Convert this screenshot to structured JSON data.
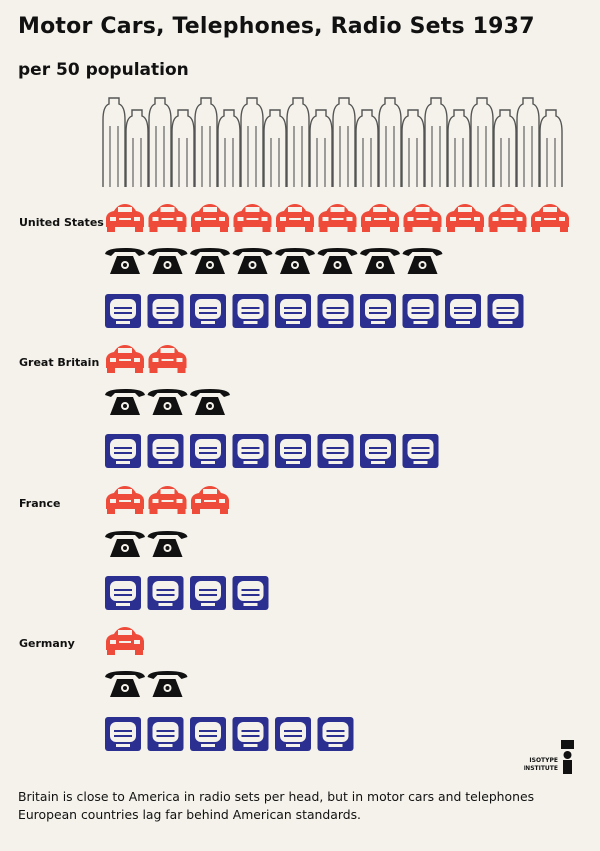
{
  "title": "Motor Cars,  Telephones,  Radio Sets 1937",
  "subtitle": "per 50 population",
  "colors": {
    "car": "#ee4b3b",
    "telephone": "#111111",
    "radio": "#2b2f8f",
    "people_outline": "#555555",
    "background": "#f4f2ea"
  },
  "logo": {
    "name": "ISOTYPE INSTITUTE"
  },
  "footnote": "Britain is close to America in radio sets per head, but in motor cars and telephones European countries lag far behind American standards.",
  "chart_data": {
    "type": "pictogram",
    "title": "Motor Cars, Telephones, Radio Sets 1937",
    "subtitle": "per 50 population",
    "unit_header_icons": 20,
    "series": [
      {
        "name": "Motor Cars",
        "icon": "car-icon"
      },
      {
        "name": "Telephones",
        "icon": "telephone-icon"
      },
      {
        "name": "Radio Sets",
        "icon": "radio-icon"
      }
    ],
    "countries": [
      {
        "name": "United States",
        "motor_cars": 11,
        "telephones": 8,
        "radio_sets": 10
      },
      {
        "name": "Great Britain",
        "motor_cars": 2,
        "telephones": 3,
        "radio_sets": 8
      },
      {
        "name": "France",
        "motor_cars": 3,
        "telephones": 2,
        "radio_sets": 4
      },
      {
        "name": "Germany",
        "motor_cars": 1,
        "telephones": 2,
        "radio_sets": 6
      }
    ]
  }
}
